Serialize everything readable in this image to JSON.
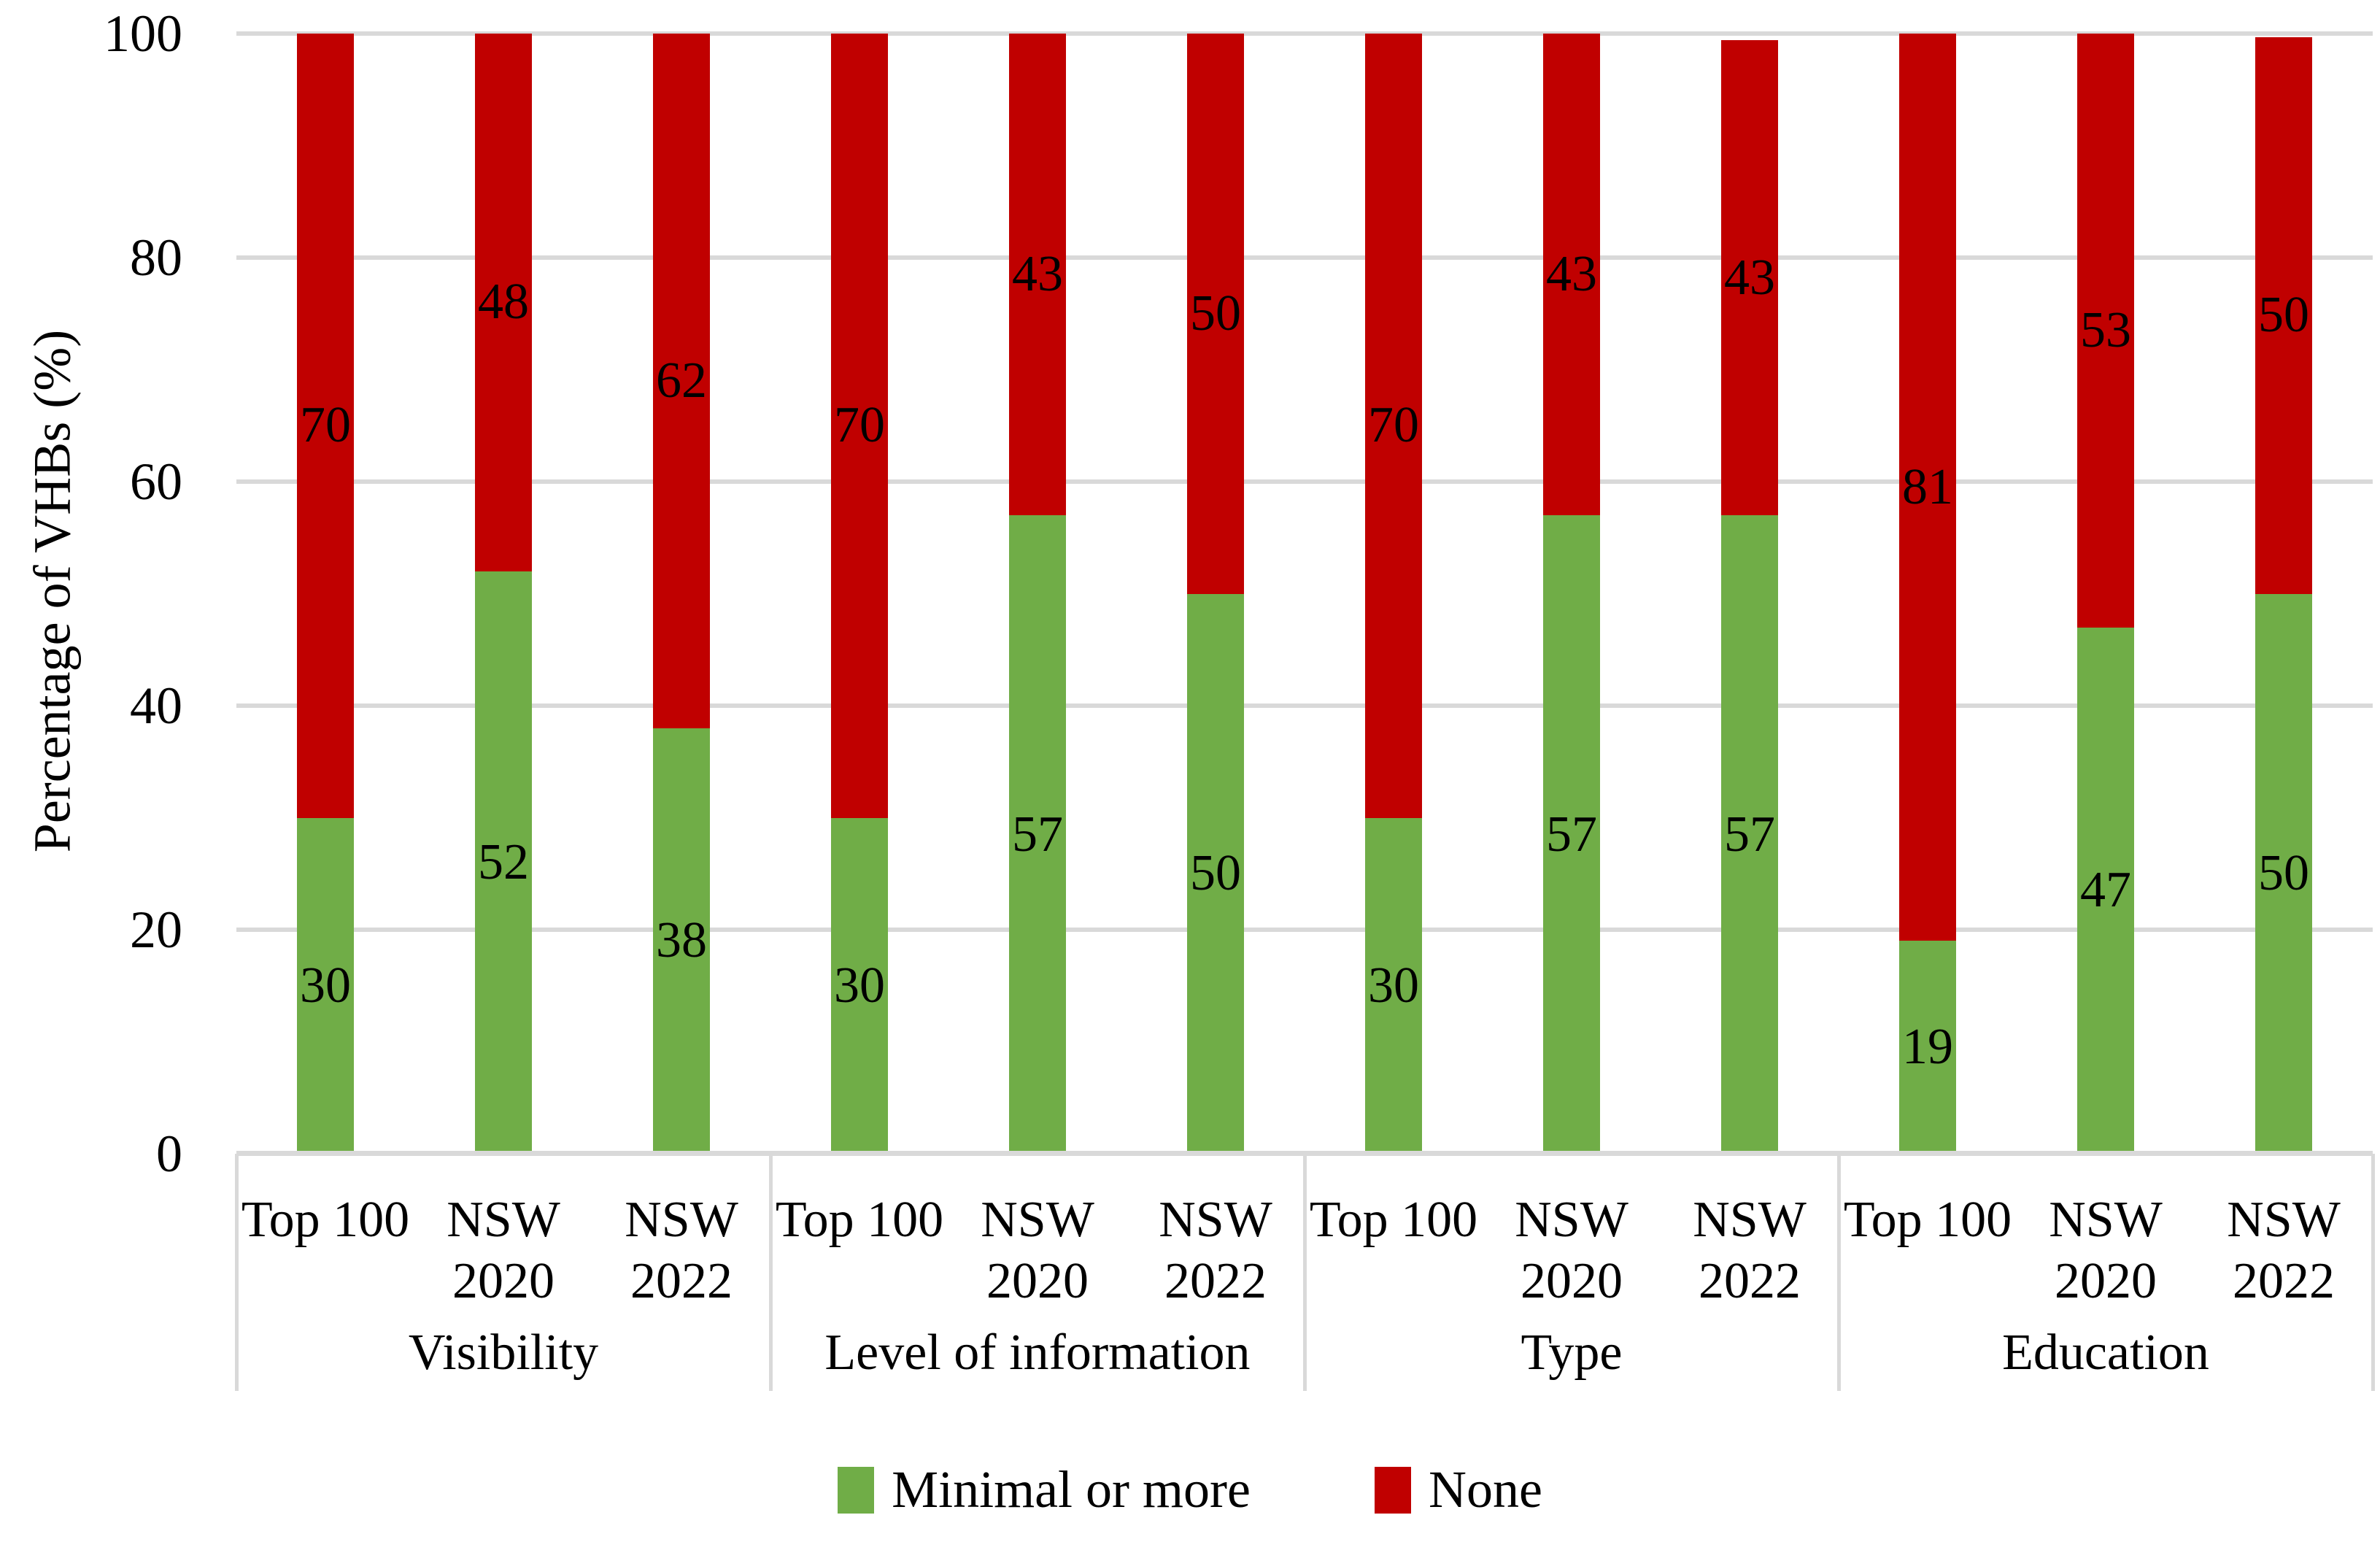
{
  "chart_data": {
    "type": "bar",
    "stacked": true,
    "ylabel": "Percentage of VHBs (%)",
    "ylim": [
      0,
      100
    ],
    "yticks": [
      0,
      20,
      40,
      60,
      80,
      100
    ],
    "grid": "horizontal",
    "legend_position": "bottom",
    "groups": [
      "Visibility",
      "Level of information",
      "Type",
      "Education"
    ],
    "categories": [
      "Top 100",
      "NSW 2020",
      "NSW 2022"
    ],
    "category_label_lines": [
      [
        "Top 100"
      ],
      [
        "NSW",
        "2020"
      ],
      [
        "NSW",
        "2022"
      ]
    ],
    "series": [
      {
        "name": "Minimal or more",
        "color": "#70AD47",
        "values": [
          [
            30,
            52,
            38
          ],
          [
            30,
            57,
            50
          ],
          [
            30,
            57,
            57
          ],
          [
            19,
            47,
            50
          ]
        ]
      },
      {
        "name": "None",
        "color": "#C00000",
        "values": [
          [
            70,
            48,
            62
          ],
          [
            70,
            43,
            50
          ],
          [
            70,
            43,
            43
          ],
          [
            81,
            53,
            50
          ]
        ]
      }
    ],
    "bar_top_pct": [
      [
        100,
        100,
        100
      ],
      [
        100,
        100,
        100
      ],
      [
        100,
        100,
        99.4
      ],
      [
        100,
        100,
        99.7
      ]
    ]
  },
  "colors": {
    "grid": "#D9D9D9",
    "axis": "#D9D9D9",
    "text": "#000000",
    "background": "#FFFFFF"
  }
}
